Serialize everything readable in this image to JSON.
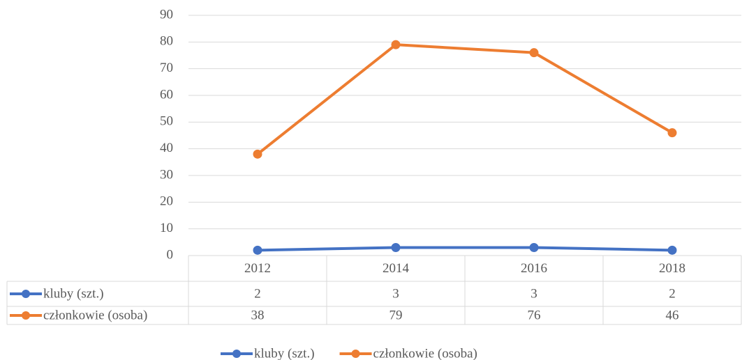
{
  "chart_data": {
    "type": "line",
    "categories": [
      "2012",
      "2014",
      "2016",
      "2018"
    ],
    "series": [
      {
        "name": "kluby (szt.)",
        "color": "#4472c4",
        "values": [
          2,
          3,
          3,
          2
        ]
      },
      {
        "name": "członkowie (osoba)",
        "color": "#ed7d31",
        "values": [
          38,
          79,
          76,
          46
        ]
      }
    ],
    "ylim": [
      0,
      90
    ],
    "yticks": [
      0,
      10,
      20,
      30,
      40,
      50,
      60,
      70,
      80,
      90
    ],
    "grid": true,
    "legend": "bottom",
    "data_table": true
  }
}
